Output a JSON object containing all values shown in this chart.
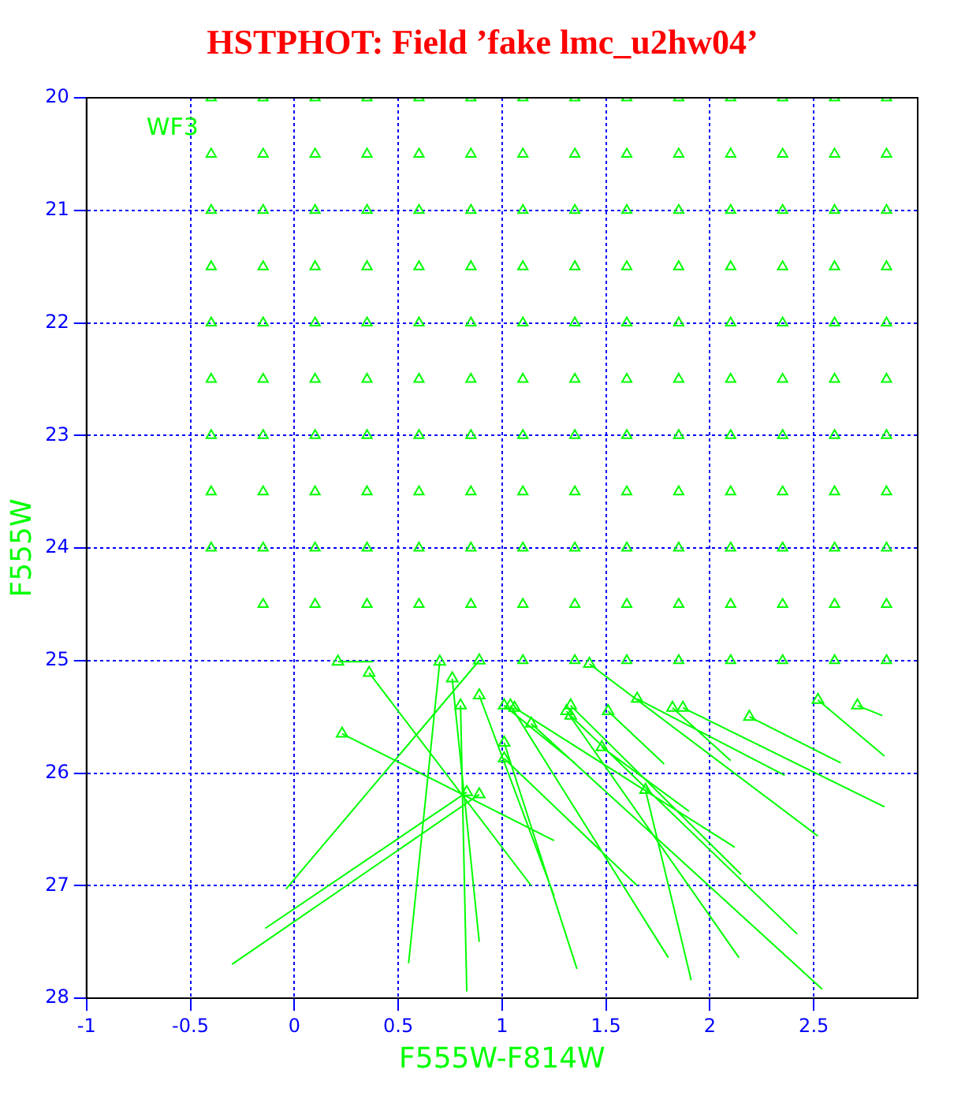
{
  "chart_data": {
    "type": "scatter",
    "title": "HSTPHOT: Field ’fake lmc_u2hw04’",
    "xlabel": "F555W-F814W",
    "ylabel": "F555W",
    "annotations": [
      "WF3"
    ],
    "xlim": [
      -1,
      3
    ],
    "xticks": [
      -1,
      -0.5,
      0,
      0.5,
      1,
      1.5,
      2,
      2.5
    ],
    "ylim": [
      28,
      20
    ],
    "yticks": [
      20,
      21,
      22,
      23,
      24,
      25,
      26,
      27,
      28
    ],
    "grid": true,
    "legend": false,
    "series": [
      {
        "type": "scatter",
        "color": "#00ff00",
        "marker": "triangle",
        "x": [
          -0.4,
          -0.15,
          0.1,
          0.35,
          0.6,
          0.85,
          1.1,
          1.35,
          1.6,
          1.85,
          2.1,
          2.35,
          2.6,
          2.85,
          -0.4,
          -0.15,
          0.1,
          0.35,
          0.6,
          0.85,
          1.1,
          1.35,
          1.6,
          1.85,
          2.1,
          2.35,
          2.6,
          2.85,
          -0.4,
          -0.15,
          0.1,
          0.35,
          0.6,
          0.85,
          1.1,
          1.35,
          1.6,
          1.85,
          2.1,
          2.35,
          2.6,
          2.85,
          -0.4,
          -0.15,
          0.1,
          0.35,
          0.6,
          0.85,
          1.1,
          1.35,
          1.6,
          1.85,
          2.1,
          2.35,
          2.6,
          2.85,
          -0.4,
          -0.15,
          0.1,
          0.35,
          0.6,
          0.85,
          1.1,
          1.35,
          1.6,
          1.85,
          2.1,
          2.35,
          2.6,
          2.85,
          -0.4,
          -0.15,
          0.1,
          0.35,
          0.6,
          0.85,
          1.1,
          1.35,
          1.6,
          1.85,
          2.1,
          2.35,
          2.6,
          2.85,
          -0.4,
          -0.15,
          0.1,
          0.35,
          0.6,
          0.85,
          1.1,
          1.35,
          1.6,
          1.85,
          2.1,
          2.35,
          2.6,
          2.85,
          -0.4,
          -0.15,
          0.1,
          0.35,
          0.6,
          0.85,
          1.1,
          1.35,
          1.6,
          1.85,
          2.1,
          2.35,
          2.6,
          2.85,
          -0.4,
          -0.15,
          0.1,
          0.35,
          0.6,
          0.85,
          1.1,
          1.35,
          1.6,
          1.85,
          2.1,
          2.35,
          2.6,
          2.85,
          -0.15,
          0.1,
          0.35,
          0.6,
          0.85,
          1.1,
          1.35,
          1.6,
          1.85,
          2.1,
          2.35,
          2.6,
          2.85,
          1.1,
          1.35,
          1.6,
          1.85,
          2.1,
          2.35,
          2.6,
          2.85
        ],
        "values": [
          20,
          20,
          20,
          20,
          20,
          20,
          20,
          20,
          20,
          20,
          20,
          20,
          20,
          20,
          20.5,
          20.5,
          20.5,
          20.5,
          20.5,
          20.5,
          20.5,
          20.5,
          20.5,
          20.5,
          20.5,
          20.5,
          20.5,
          20.5,
          21,
          21,
          21,
          21,
          21,
          21,
          21,
          21,
          21,
          21,
          21,
          21,
          21,
          21,
          21.5,
          21.5,
          21.5,
          21.5,
          21.5,
          21.5,
          21.5,
          21.5,
          21.5,
          21.5,
          21.5,
          21.5,
          21.5,
          21.5,
          22,
          22,
          22,
          22,
          22,
          22,
          22,
          22,
          22,
          22,
          22,
          22,
          22,
          22,
          22.5,
          22.5,
          22.5,
          22.5,
          22.5,
          22.5,
          22.5,
          22.5,
          22.5,
          22.5,
          22.5,
          22.5,
          22.5,
          22.5,
          23,
          23,
          23,
          23,
          23,
          23,
          23,
          23,
          23,
          23,
          23,
          23,
          23,
          23,
          23.5,
          23.5,
          23.5,
          23.5,
          23.5,
          23.5,
          23.5,
          23.5,
          23.5,
          23.5,
          23.5,
          23.5,
          23.5,
          23.5,
          24,
          24,
          24,
          24,
          24,
          24,
          24,
          24,
          24,
          24,
          24,
          24,
          24,
          24,
          24.5,
          24.5,
          24.5,
          24.5,
          24.5,
          24.5,
          24.5,
          24.5,
          24.5,
          24.5,
          24.5,
          24.5,
          24.5,
          25,
          25,
          25,
          25,
          25,
          25,
          25,
          25
        ]
      },
      {
        "type": "line",
        "color": "#00ff00",
        "marker": "triangle",
        "x": [
          -0.3,
          0.89,
          null,
          -0.14,
          0.83,
          null,
          -0.04,
          0.89,
          null,
          0.55,
          0.7,
          null,
          0.83,
          0.8,
          null,
          0.89,
          0.76,
          null,
          1.14,
          0.36,
          null,
          1.25,
          0.23,
          null,
          1.25,
          0.89,
          null,
          0.38,
          0.21,
          null,
          1.36,
          1.01,
          null,
          1.8,
          1.04,
          null,
          1.91,
          1.69,
          null,
          2.14,
          1.31,
          null,
          2.54,
          1.14,
          null,
          2.42,
          1.33,
          null,
          1.65,
          1.01,
          null,
          2.15,
          1.33,
          null,
          2.12,
          1.06,
          null,
          1.9,
          1.48,
          null,
          2.52,
          1.42,
          null,
          2.84,
          1.87,
          null,
          2.63,
          2.19,
          null,
          2.84,
          2.52,
          null,
          2.83,
          2.71,
          null,
          2.1,
          1.82,
          null,
          2.36,
          1.65,
          null,
          1.78,
          1.51,
          null,
          1.35,
          1.01
        ],
        "values": [
          27.7,
          26.19,
          null,
          27.38,
          26.17,
          null,
          27.03,
          25,
          null,
          27.69,
          25.01,
          null,
          27.94,
          25.4,
          null,
          27.5,
          25.16,
          null,
          27,
          25.11,
          null,
          26.6,
          25.65,
          null,
          27.09,
          25.31,
          null,
          25.01,
          25.01,
          null,
          27.74,
          25.73,
          null,
          27.64,
          25.4,
          null,
          27.84,
          26.15,
          null,
          27.64,
          25.45,
          null,
          27.92,
          25.56,
          null,
          27.43,
          25.49,
          null,
          27,
          25.87,
          null,
          26.9,
          25.4,
          null,
          26.66,
          25.42,
          null,
          26.34,
          25.77,
          null,
          26.56,
          25.03,
          null,
          26.3,
          25.42,
          null,
          25.91,
          25.5,
          null,
          25.85,
          25.35,
          null,
          25.49,
          25.4,
          null,
          25.89,
          25.42,
          null,
          26.02,
          25.34,
          null,
          25.92,
          25.45,
          null,
          25.91,
          25.4
        ]
      }
    ]
  }
}
